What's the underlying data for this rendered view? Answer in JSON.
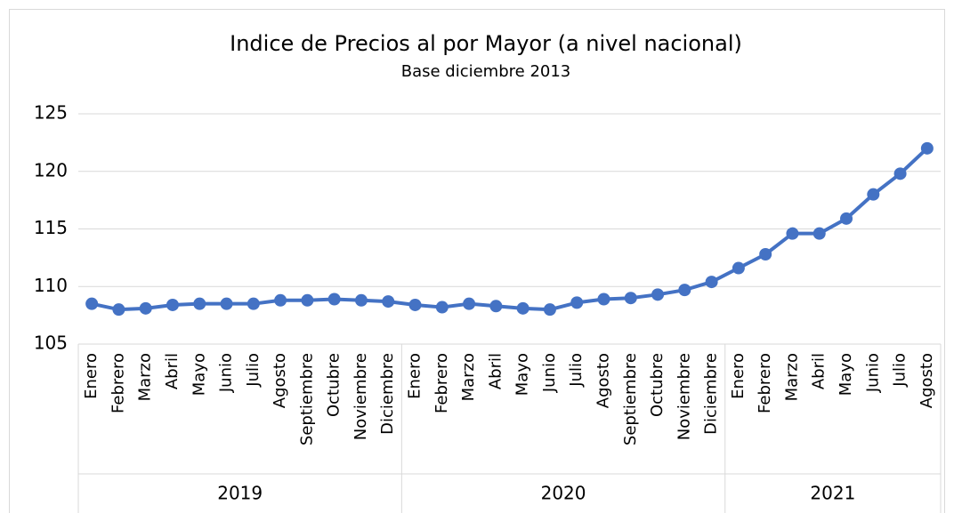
{
  "chart_data": {
    "type": "line",
    "title": "Indice de Precios al por Mayor (a nivel nacional)",
    "subtitle": "Base diciembre 2013",
    "categories": [
      "Enero",
      "Febrero",
      "Marzo",
      "Abril",
      "Mayo",
      "Junio",
      "Julio",
      "Agosto",
      "Septiembre",
      "Octubre",
      "Noviembre",
      "Diciembre",
      "Enero",
      "Febrero",
      "Marzo",
      "Abril",
      "Mayo",
      "Junio",
      "Julio",
      "Agosto",
      "Septiembre",
      "Octubre",
      "Noviembre",
      "Diciembre",
      "Enero",
      "Febrero",
      "Marzo",
      "Abril",
      "Mayo",
      "Junio",
      "Julio",
      "Agosto"
    ],
    "category_groups": [
      {
        "label": "2019",
        "size": 12
      },
      {
        "label": "2020",
        "size": 12
      },
      {
        "label": "2021",
        "size": 8
      }
    ],
    "values": [
      108.5,
      108.0,
      108.1,
      108.4,
      108.5,
      108.5,
      108.5,
      108.8,
      108.8,
      108.9,
      108.8,
      108.7,
      108.4,
      108.2,
      108.5,
      108.3,
      108.1,
      108.0,
      108.6,
      108.9,
      109.0,
      109.3,
      109.7,
      110.4,
      111.6,
      112.8,
      114.6,
      114.6,
      115.9,
      118.0,
      119.8,
      122.0
    ],
    "color": "#4472c4",
    "ylim": [
      105,
      125
    ],
    "yticks": [
      105,
      110,
      115,
      120,
      125
    ],
    "grid": true
  }
}
